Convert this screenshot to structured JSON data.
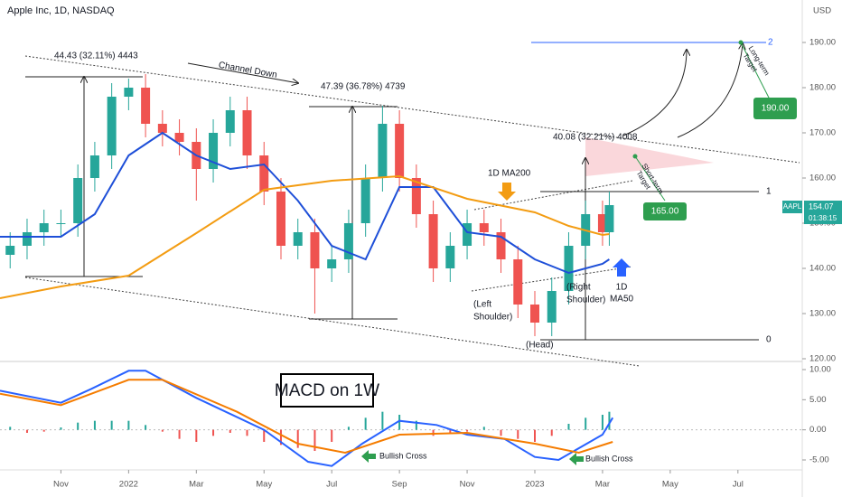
{
  "header": {
    "title": "Apple Inc, 1D, NASDAQ",
    "currency": "USD"
  },
  "chart_data": [
    {
      "type": "candlestick",
      "x": [
        -3.5,
        -3,
        -2.5,
        -2,
        -1.5,
        -1,
        -0.5,
        0,
        0.5,
        1,
        1.5,
        2,
        2.5,
        3,
        3.5,
        4,
        4.5,
        5,
        5.5,
        6,
        6.5,
        7,
        7.5,
        8,
        8.5,
        9,
        9.5,
        10,
        10.5,
        11,
        11.5,
        12,
        12.5,
        13,
        13.5,
        14,
        14.2
      ],
      "open": [
        143,
        145,
        148,
        150,
        150,
        160,
        165,
        178,
        180,
        172,
        170,
        168,
        162,
        170,
        175,
        165,
        157,
        145,
        148,
        140,
        142,
        150,
        160,
        172,
        160,
        152,
        140,
        145,
        150,
        148,
        142,
        132,
        128,
        135,
        145,
        152,
        148
      ],
      "high": [
        148,
        151,
        153,
        153,
        163,
        168,
        181,
        182,
        183,
        175,
        173,
        171,
        173,
        178,
        178,
        168,
        160,
        151,
        151,
        145,
        153,
        163,
        176,
        175,
        163,
        155,
        148,
        153,
        153,
        151,
        145,
        135,
        138,
        148,
        155,
        155,
        157
      ],
      "low": [
        140,
        142,
        145,
        147,
        147,
        157,
        162,
        175,
        169,
        167,
        165,
        155,
        159,
        167,
        162,
        154,
        142,
        142,
        130,
        137,
        139,
        147,
        157,
        157,
        149,
        137,
        137,
        142,
        145,
        139,
        129,
        125,
        125,
        132,
        142,
        145,
        145
      ],
      "close": [
        145,
        148,
        150,
        150,
        160,
        165,
        178,
        180,
        172,
        170,
        168,
        162,
        170,
        175,
        165,
        157,
        145,
        148,
        140,
        142,
        150,
        160,
        172,
        160,
        152,
        140,
        145,
        150,
        148,
        142,
        132,
        128,
        135,
        145,
        152,
        148,
        154
      ],
      "up_color": "#26a69a",
      "down_color": "#ef5350",
      "series": [
        {
          "color": "#1e4fd8",
          "x": [
            -3.8,
            -3,
            -2,
            -1,
            0,
            1,
            2,
            3,
            4,
            5,
            6,
            7,
            8,
            9,
            10,
            11,
            12,
            13,
            14,
            14.2
          ],
          "values": [
            147,
            147,
            147,
            152,
            165,
            170,
            165,
            162,
            163,
            155,
            145,
            142,
            158,
            158,
            148,
            147,
            142,
            139,
            141,
            142
          ]
        },
        {
          "color": "#f39c12",
          "x": [
            -3.8,
            -2,
            0,
            2,
            4,
            6,
            8,
            10,
            12,
            13,
            14,
            14.2
          ],
          "values": [
            133.4,
            136,
            138.4,
            147.8,
            157.4,
            159.4,
            160.4,
            155.4,
            152.4,
            149.4,
            147.4,
            147.6
          ]
        }
      ],
      "xlim": [
        -3.8,
        19.9
      ],
      "ylim": [
        119.4,
        199.4
      ],
      "yticks": [
        {
          "value": 120,
          "label": "120.00"
        },
        {
          "value": 130,
          "label": "130.00"
        },
        {
          "value": 140,
          "label": "140.00"
        },
        {
          "value": 150,
          "label": "150.00"
        },
        {
          "value": 160,
          "label": "160.00"
        },
        {
          "value": 170,
          "label": "170.00"
        },
        {
          "value": 180,
          "label": "180.00"
        },
        {
          "value": 190,
          "label": "190.00"
        }
      ]
    },
    {
      "type": "line",
      "series": [
        {
          "color": "#2962ff",
          "x": [
            -3.8,
            -2,
            -1.1,
            0,
            0.5,
            2,
            4,
            5.3,
            6,
            6.9,
            8,
            9.1,
            10,
            11.1,
            12,
            12.7,
            14,
            14.3
          ],
          "values": [
            6.5,
            4.5,
            6.8,
            9.8,
            9.8,
            5.3,
            0,
            -5.3,
            -6,
            -2.3,
            1.5,
            0.8,
            -0.8,
            -1.5,
            -4.5,
            -5,
            -0.8,
            2
          ]
        },
        {
          "color": "#f57c00",
          "x": [
            -3.8,
            -2,
            0,
            1,
            3.2,
            5,
            6.4,
            8,
            10,
            12,
            13.3,
            14.3
          ],
          "values": [
            6,
            4.1,
            8.3,
            8.3,
            3,
            -2.3,
            -3.8,
            -0.8,
            -0.5,
            -2.3,
            -3.8,
            -2
          ]
        }
      ],
      "histogram": {
        "x": [
          -3.5,
          -3,
          -2.5,
          -2,
          -1.5,
          -1,
          -0.5,
          0,
          0.5,
          1,
          1.5,
          2,
          2.5,
          3,
          3.5,
          4,
          4.5,
          5,
          5.5,
          6,
          6.5,
          7,
          7.5,
          8,
          8.5,
          9,
          9.5,
          10,
          10.5,
          11,
          11.5,
          12,
          12.5,
          13,
          13.5,
          14,
          14.2
        ],
        "values": [
          0.5,
          -0.5,
          -0.3,
          0.4,
          1.2,
          1.5,
          1.5,
          1.5,
          0.8,
          -0.3,
          -1.5,
          -2,
          -1,
          -0.5,
          -1,
          -2,
          -2.5,
          -3,
          -3.5,
          -2,
          0.5,
          2,
          3,
          2.5,
          1.5,
          -1,
          -0.5,
          -0.3,
          0.5,
          -1,
          -1.5,
          -2,
          -1,
          1,
          2,
          2.5,
          3
        ],
        "up_color": "#26a69a",
        "down_color": "#ef5350"
      },
      "xlim": [
        -3.8,
        19.9
      ],
      "ylim": [
        -6.65,
        11.35
      ],
      "xticks": [
        {
          "value": -2,
          "label": "Nov"
        },
        {
          "value": 0,
          "label": "2022"
        },
        {
          "value": 2,
          "label": "Mar"
        },
        {
          "value": 4,
          "label": "May"
        },
        {
          "value": 6,
          "label": "Jul"
        },
        {
          "value": 8,
          "label": "Sep"
        },
        {
          "value": 10,
          "label": "Nov"
        },
        {
          "value": 12,
          "label": "2023"
        },
        {
          "value": 14,
          "label": "Mar"
        },
        {
          "value": 16,
          "label": "May"
        },
        {
          "value": 18,
          "label": "Jul"
        }
      ],
      "yticks": [
        {
          "value": -5,
          "label": "-5.00"
        },
        {
          "value": 0,
          "label": "0.00"
        },
        {
          "value": 5,
          "label": "5.00"
        },
        {
          "value": 10,
          "label": "10.00"
        }
      ]
    }
  ],
  "annotations": {
    "measure_1": "44.43 (32.11%) 4443",
    "channel": "Channel Down",
    "measure_2": "47.39 (36.78%) 4739",
    "measure_3": "40.08 (32.21%) 4008",
    "ma200": "1D MA200",
    "left_shoulder": [
      "(Left",
      "Shoulder)"
    ],
    "head": "(Head)",
    "right_shoulder": [
      "(Right",
      "Shoulder)"
    ],
    "ma50": [
      "1D",
      "MA50"
    ],
    "short_target": [
      "Short-term",
      "Target"
    ],
    "short_price": "165.00",
    "long_target": [
      "Long-term",
      "Target"
    ],
    "long_price": "190.00",
    "fib": [
      "2",
      "1",
      "0"
    ],
    "macd_label": "MACD on 1W",
    "cross": [
      "Bullish Cross",
      "Bullish Cross"
    ]
  },
  "price_tag": {
    "symbol": "AAPL",
    "price": "154.07",
    "countdown": "01:38:15"
  }
}
